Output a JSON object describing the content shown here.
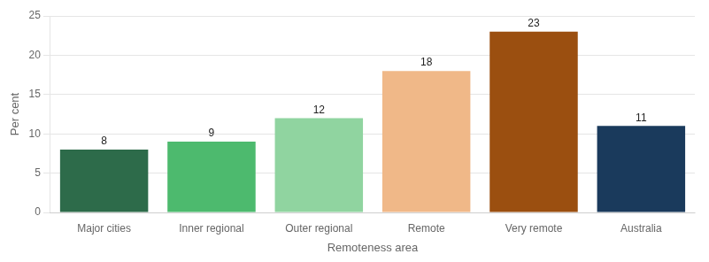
{
  "chart_data": {
    "type": "bar",
    "categories": [
      "Major cities",
      "Inner regional",
      "Outer regional",
      "Remote",
      "Very remote",
      "Australia"
    ],
    "values": [
      8,
      9,
      12,
      18,
      23,
      11
    ],
    "colors": [
      "#2d6b4a",
      "#4dba6e",
      "#90d4a0",
      "#f0b888",
      "#9b4f10",
      "#1a3a5c"
    ],
    "xlabel": "Remoteness area",
    "ylabel": "Per cent",
    "ylim": [
      0,
      25
    ],
    "yticks": [
      0,
      5,
      10,
      15,
      20,
      25
    ],
    "grid": true,
    "data_labels": true
  }
}
